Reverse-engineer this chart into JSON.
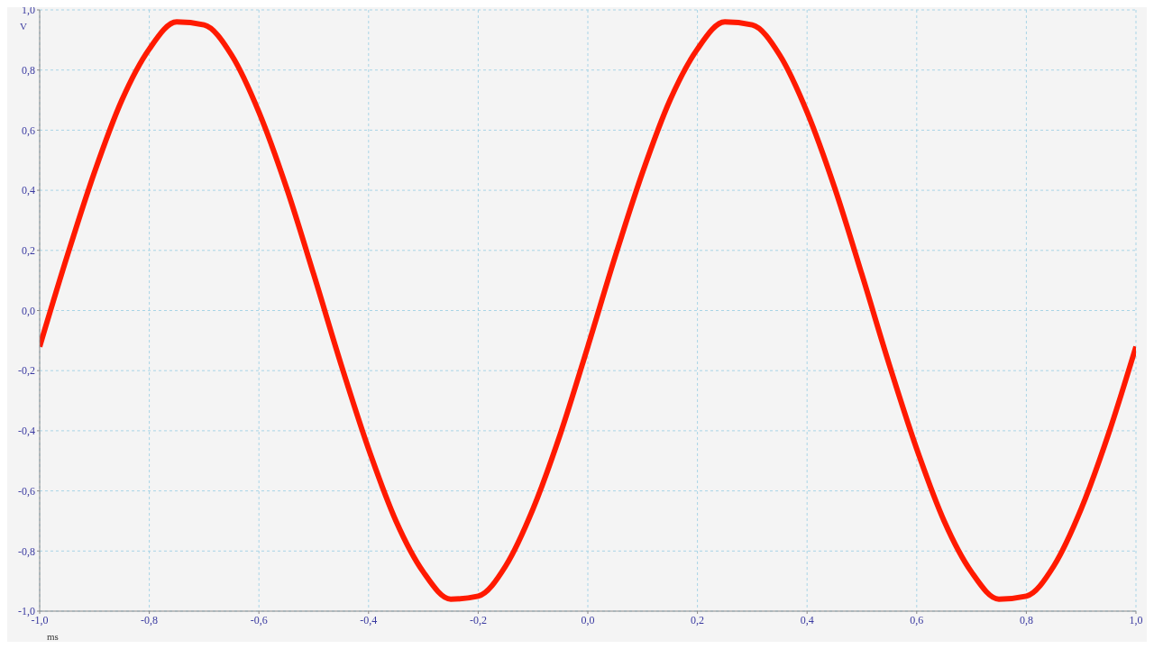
{
  "chart_data": {
    "type": "line",
    "xlabel": "ms",
    "ylabel": "V",
    "x": [
      -1.0,
      -0.95,
      -0.9,
      -0.85,
      -0.8,
      -0.75,
      -0.7,
      -0.65,
      -0.6,
      -0.55,
      -0.5,
      -0.45,
      -0.4,
      -0.35,
      -0.3,
      -0.25,
      -0.2,
      -0.15,
      -0.1,
      -0.05,
      0.0,
      0.05,
      0.1,
      0.15,
      0.2,
      0.25,
      0.3,
      0.35,
      0.4,
      0.45,
      0.5,
      0.55,
      0.6,
      0.65,
      0.7,
      0.75,
      0.8,
      0.85,
      0.9,
      0.95,
      1.0
    ],
    "series": [
      {
        "color": "#ff1a00",
        "values": [
          -0.12,
          0.18,
          0.46,
          0.7,
          0.87,
          0.96,
          0.95,
          0.85,
          0.66,
          0.41,
          0.12,
          -0.18,
          -0.46,
          -0.7,
          -0.87,
          -0.96,
          -0.95,
          -0.85,
          -0.66,
          -0.41,
          -0.12,
          0.18,
          0.46,
          0.7,
          0.87,
          0.96,
          0.95,
          0.85,
          0.66,
          0.41,
          0.12,
          -0.18,
          -0.46,
          -0.7,
          -0.87,
          -0.96,
          -0.95,
          -0.85,
          -0.66,
          -0.41,
          -0.12
        ]
      }
    ],
    "xlim": [
      -1.0,
      1.0
    ],
    "xticks": [
      {
        "value": -1.0,
        "label": "-1,0"
      },
      {
        "value": -0.8,
        "label": "-0,8"
      },
      {
        "value": -0.6,
        "label": "-0,6"
      },
      {
        "value": -0.4,
        "label": "-0,4"
      },
      {
        "value": -0.2,
        "label": "-0,2"
      },
      {
        "value": 0.0,
        "label": "0,0"
      },
      {
        "value": 0.2,
        "label": "0,2"
      },
      {
        "value": 0.4,
        "label": "0,4"
      },
      {
        "value": 0.6,
        "label": "0,6"
      },
      {
        "value": 0.8,
        "label": "0,8"
      },
      {
        "value": 1.0,
        "label": "1,0"
      }
    ],
    "ylim": [
      -1.0,
      1.0
    ],
    "yticks": [
      {
        "value": -1.0,
        "label": "-1,0"
      },
      {
        "value": -0.8,
        "label": "-0,8"
      },
      {
        "value": -0.6,
        "label": "-0,6"
      },
      {
        "value": -0.4,
        "label": "-0,4"
      },
      {
        "value": -0.2,
        "label": "-0,2"
      },
      {
        "value": 0.0,
        "label": "0,0"
      },
      {
        "value": 0.2,
        "label": "0,2"
      },
      {
        "value": 0.4,
        "label": "0,4"
      },
      {
        "value": 0.6,
        "label": "0,6"
      },
      {
        "value": 0.8,
        "label": "0,8"
      },
      {
        "value": 1.0,
        "label": "1,0"
      }
    ],
    "grid": true,
    "marker": "none",
    "line_style": "solid"
  }
}
